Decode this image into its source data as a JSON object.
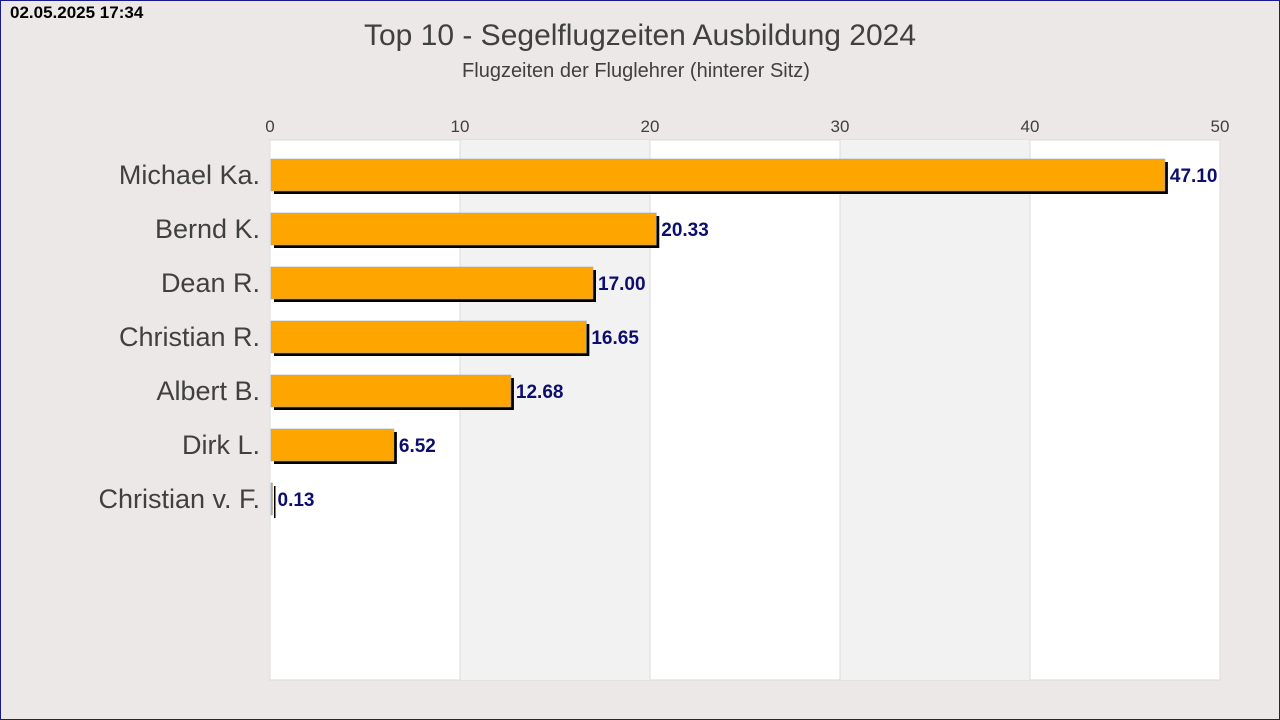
{
  "timestamp": "02.05.2025 17:34",
  "colors": {
    "bar": "#ffa500",
    "bar_shadow": "#000000",
    "value_label": "#0d0d6e",
    "band_alt": "#f3f2f2",
    "plot_bg": "#ffffff",
    "page_bg": "#ece8e8"
  },
  "chart_data": {
    "type": "bar",
    "orientation": "horizontal",
    "title": "Top 10 - Segelflugzeiten Ausbildung 2024",
    "subtitle": "Flugzeiten der Fluglehrer (hinterer Sitz)",
    "xlabel": "",
    "ylabel": "",
    "xlim": [
      0,
      50
    ],
    "xticks": [
      0,
      10,
      20,
      30,
      40,
      50
    ],
    "xtick_labels": [
      "0",
      "10",
      "20",
      "30",
      "40",
      "50"
    ],
    "x_axis_position": "top",
    "grid": true,
    "slots": 10,
    "categories": [
      "Michael Ka.",
      "Bernd K.",
      "Dean R.",
      "Christian R.",
      "Albert B.",
      "Dirk L.",
      "Christian v. F."
    ],
    "values": [
      47.1,
      20.33,
      17.0,
      16.65,
      12.68,
      6.52,
      0.13
    ],
    "value_labels": [
      "47.10",
      "20.33",
      "17.00",
      "16.65",
      "12.68",
      "6.52",
      "0.13"
    ]
  }
}
